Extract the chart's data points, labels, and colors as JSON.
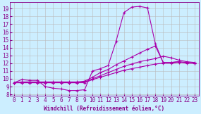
{
  "xlabel": "Windchill (Refroidissement éolien,°C)",
  "bg_color": "#cceeff",
  "line_color": "#aa00aa",
  "grid_color": "#bbbbbb",
  "xlim": [
    -0.5,
    23.5
  ],
  "ylim": [
    7.8,
    19.8
  ],
  "xticks": [
    0,
    1,
    2,
    3,
    4,
    5,
    6,
    7,
    8,
    9,
    10,
    11,
    12,
    13,
    14,
    15,
    16,
    17,
    18,
    19,
    20,
    21,
    22,
    23
  ],
  "yticks": [
    8,
    9,
    10,
    11,
    12,
    13,
    14,
    15,
    16,
    17,
    18,
    19
  ],
  "series1_x": [
    0,
    1,
    2,
    3,
    4,
    5,
    6,
    7,
    8,
    9,
    10,
    11,
    12,
    13,
    14,
    15,
    16,
    17,
    18,
    19,
    20,
    21,
    22,
    23
  ],
  "series1_y": [
    9.5,
    9.9,
    9.8,
    9.8,
    9.0,
    8.8,
    8.7,
    8.5,
    8.5,
    8.6,
    11.0,
    11.3,
    11.7,
    14.8,
    18.5,
    19.2,
    19.3,
    19.1,
    14.5,
    12.1,
    12.1,
    12.2,
    12.0,
    12.0
  ],
  "series2_x": [
    0,
    1,
    2,
    3,
    4,
    5,
    6,
    7,
    8,
    9,
    10,
    11,
    12,
    13,
    14,
    15,
    16,
    17,
    18,
    19,
    20,
    21,
    22,
    23
  ],
  "series2_y": [
    9.5,
    9.6,
    9.6,
    9.6,
    9.6,
    9.6,
    9.6,
    9.6,
    9.6,
    9.7,
    10.2,
    10.8,
    11.2,
    11.8,
    12.3,
    12.8,
    13.3,
    13.8,
    14.2,
    12.1,
    12.1,
    12.2,
    12.1,
    12.0
  ],
  "series3_x": [
    0,
    1,
    2,
    3,
    4,
    5,
    6,
    7,
    8,
    9,
    10,
    11,
    12,
    13,
    14,
    15,
    16,
    17,
    18,
    19,
    20,
    21,
    22,
    23
  ],
  "series3_y": [
    9.5,
    9.5,
    9.5,
    9.5,
    9.5,
    9.5,
    9.5,
    9.5,
    9.5,
    9.6,
    10.0,
    10.4,
    10.8,
    11.2,
    11.6,
    11.9,
    12.2,
    12.4,
    12.6,
    12.9,
    12.7,
    12.4,
    12.2,
    12.1
  ],
  "series4_x": [
    0,
    1,
    2,
    3,
    4,
    5,
    6,
    7,
    8,
    9,
    10,
    11,
    12,
    13,
    14,
    15,
    16,
    17,
    18,
    19,
    20,
    21,
    22,
    23
  ],
  "series4_y": [
    9.5,
    9.5,
    9.5,
    9.5,
    9.5,
    9.5,
    9.5,
    9.5,
    9.5,
    9.5,
    9.9,
    10.2,
    10.5,
    10.8,
    11.1,
    11.3,
    11.5,
    11.7,
    11.9,
    12.0,
    12.0,
    12.1,
    12.1,
    12.0
  ],
  "marker": "+",
  "markersize": 2.5,
  "linewidth": 0.8,
  "tick_fontsize": 5.5,
  "xlabel_fontsize": 5.5
}
